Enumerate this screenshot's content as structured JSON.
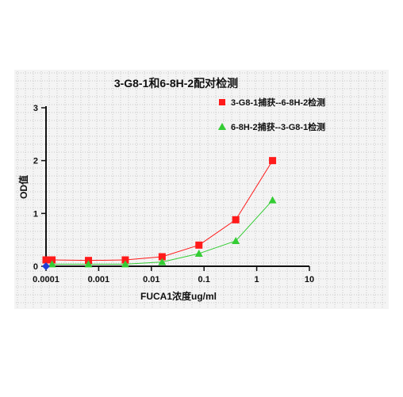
{
  "chart_data": {
    "type": "line",
    "title": "3-G8-1和6-8H-2配对检测",
    "xlabel": "FUCA1浓度ug/ml",
    "ylabel": "OD值",
    "xscale": "log",
    "xlim": [
      0.0001,
      10
    ],
    "ylim": [
      0,
      3
    ],
    "xticks": [
      "0.0001",
      "0.001",
      "0.01",
      "0.1",
      "1",
      "10"
    ],
    "yticks": [
      "0",
      "1",
      "2",
      "3"
    ],
    "grid": true,
    "legend_position": "top-right",
    "series": [
      {
        "name": "3-G8-1捕获--6-8H-2检测",
        "color": "#ff1a1a",
        "marker": "square",
        "x": [
          0.0001,
          0.00013,
          0.00064,
          0.0032,
          0.016,
          0.08,
          0.4,
          2
        ],
        "y": [
          0.12,
          0.12,
          0.11,
          0.12,
          0.18,
          0.4,
          0.88,
          2.0
        ]
      },
      {
        "name": "6-8H-2捕获--3-G8-1检测",
        "color": "#33cc33",
        "marker": "triangle",
        "x": [
          0.00013,
          0.00064,
          0.0032,
          0.016,
          0.08,
          0.4,
          2
        ],
        "y": [
          0.04,
          0.04,
          0.04,
          0.08,
          0.24,
          0.48,
          1.25
        ]
      },
      {
        "name": "",
        "color": "#1f3fd6",
        "marker": "diamond",
        "x": [
          0.0001
        ],
        "y": [
          0.0
        ]
      }
    ]
  }
}
